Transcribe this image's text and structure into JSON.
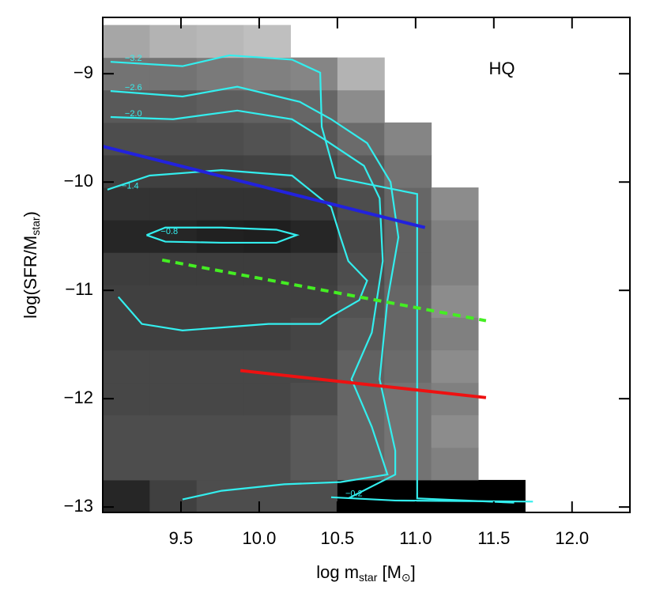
{
  "chart_data": {
    "type": "heatmap",
    "annotation": "HQ",
    "x_label": [
      "log m",
      "star",
      " [M",
      "⊙",
      "]"
    ],
    "y_label": [
      "log(SFR/M",
      "star",
      ")"
    ],
    "xlim": [
      9.0,
      12.37
    ],
    "ylim": [
      -13.05,
      -8.48
    ],
    "xticks": [
      9.5,
      {
        "value": 10,
        "label": "10.0"
      },
      10.5,
      {
        "value": 11,
        "label": "11.0"
      },
      11.5,
      {
        "value": 12,
        "label": "12.0"
      }
    ],
    "yticks": [
      {
        "value": -9,
        "label": "−9"
      },
      {
        "value": -10,
        "label": "−10"
      },
      {
        "value": -11,
        "label": "−11"
      },
      {
        "value": -12,
        "label": "−12"
      },
      {
        "value": -13,
        "label": "−13"
      }
    ],
    "heatmap": {
      "xbins": [
        9.0,
        9.3,
        9.6,
        9.9,
        10.2,
        10.5,
        10.8,
        11.1,
        11.4,
        11.7
      ],
      "ybins": [
        -13.05,
        -12.75,
        -12.45,
        -12.15,
        -11.85,
        -11.55,
        -11.25,
        -10.95,
        -10.65,
        -10.35,
        -10.05,
        -9.75,
        -9.45,
        -9.15,
        -8.85,
        -8.55
      ],
      "z": [
        [
          0.85,
          0.75,
          0.7,
          0.7,
          0.7,
          1,
          1,
          1,
          1
        ],
        [
          0.7,
          0.7,
          0.7,
          0.7,
          0.65,
          0.6,
          0.55,
          0.5,
          null
        ],
        [
          0.7,
          0.7,
          0.7,
          0.7,
          0.65,
          0.6,
          0.55,
          0.45,
          null
        ],
        [
          0.72,
          0.72,
          0.72,
          0.72,
          0.7,
          0.6,
          0.55,
          0.5,
          null
        ],
        [
          0.72,
          0.72,
          0.72,
          0.72,
          0.72,
          0.62,
          0.58,
          0.45,
          null
        ],
        [
          0.75,
          0.75,
          0.75,
          0.75,
          0.73,
          0.65,
          0.6,
          0.5,
          null
        ],
        [
          0.75,
          0.75,
          0.75,
          0.75,
          0.75,
          0.68,
          0.6,
          0.45,
          null
        ],
        [
          0.76,
          0.76,
          0.76,
          0.76,
          0.76,
          0.7,
          0.62,
          0.5,
          null
        ],
        [
          0.85,
          0.85,
          0.87,
          0.88,
          0.85,
          0.72,
          0.62,
          0.5,
          null
        ],
        [
          0.8,
          0.8,
          0.8,
          0.8,
          0.78,
          0.7,
          0.6,
          0.45,
          null
        ],
        [
          0.75,
          0.75,
          0.75,
          0.74,
          0.72,
          0.65,
          0.55,
          null,
          null
        ],
        [
          0.7,
          0.7,
          0.7,
          0.68,
          0.66,
          0.58,
          0.48,
          null,
          null
        ],
        [
          0.65,
          0.65,
          0.63,
          0.62,
          0.6,
          0.45,
          null,
          null,
          null
        ],
        [
          0.55,
          0.55,
          0.52,
          0.5,
          0.48,
          0.3,
          null,
          null,
          null
        ],
        [
          0.35,
          0.3,
          0.28,
          0.25,
          null,
          null,
          null,
          null,
          null
        ]
      ]
    },
    "contour_color": "#33eeee",
    "contours": [
      {
        "label": "−0.8",
        "x": [
          9.28,
          9.4,
          9.76,
          10.11,
          10.24,
          10.11,
          9.76,
          9.4,
          9.28
        ],
        "y": [
          -10.49,
          -10.42,
          -10.42,
          -10.44,
          -10.49,
          -10.56,
          -10.56,
          -10.55,
          -10.49
        ]
      },
      {
        "label": "−1.4",
        "x": [
          9.03,
          9.3,
          9.76,
          10.21,
          10.46,
          10.52,
          10.57,
          10.69,
          10.64,
          10.46,
          10.39,
          10.06,
          9.51,
          9.25,
          9.1
        ],
        "y": [
          -10.07,
          -9.94,
          -9.89,
          -9.94,
          -10.23,
          -10.51,
          -10.73,
          -10.91,
          -11.09,
          -11.24,
          -11.31,
          -11.31,
          -11.37,
          -11.31,
          -11.06
        ]
      },
      {
        "label": "−2.0",
        "x": [
          9.05,
          9.45,
          9.86,
          10.21,
          10.41,
          10.67,
          10.77,
          10.79,
          10.72,
          10.59,
          10.72,
          10.82,
          10.52,
          10.16,
          9.76,
          9.51
        ],
        "y": [
          -9.4,
          -9.42,
          -9.34,
          -9.42,
          -9.6,
          -9.85,
          -10.15,
          -10.73,
          -11.39,
          -11.82,
          -12.26,
          -12.7,
          -12.77,
          -12.79,
          -12.85,
          -12.93
        ]
      },
      {
        "label": "−2.6",
        "x": [
          9.05,
          9.51,
          9.86,
          10.26,
          10.46,
          10.69,
          10.84,
          10.89,
          10.82,
          10.77,
          10.87,
          10.87,
          10.57
        ],
        "y": [
          -9.16,
          -9.21,
          -9.12,
          -9.26,
          -9.42,
          -9.64,
          -10.0,
          -10.51,
          -11.09,
          -11.82,
          -12.48,
          -12.7,
          -12.92
        ]
      },
      {
        "label": "−3.2",
        "x": [
          9.05,
          9.51,
          9.81,
          10.21,
          10.39,
          10.4,
          10.49,
          11.01,
          11.01,
          11.63
        ],
        "y": [
          -8.89,
          -8.93,
          -8.83,
          -8.87,
          -8.99,
          -9.49,
          -9.96,
          -10.11,
          -12.92,
          -12.96
        ]
      },
      {
        "label": "−0.2",
        "x": [
          10.46,
          10.87,
          11.75
        ],
        "y": [
          -12.91,
          -12.94,
          -12.95
        ]
      }
    ],
    "lines": [
      {
        "color": "#2222dd",
        "style": "solid",
        "x": [
          9.0,
          11.06
        ],
        "y": [
          -9.67,
          -10.42
        ]
      },
      {
        "color": "#44ee22",
        "style": "dashed",
        "x": [
          9.38,
          11.45
        ],
        "y": [
          -10.72,
          -11.28
        ]
      },
      {
        "color": "#ee1111",
        "style": "solid",
        "x": [
          9.88,
          11.45
        ],
        "y": [
          -11.74,
          -11.99
        ]
      }
    ]
  }
}
